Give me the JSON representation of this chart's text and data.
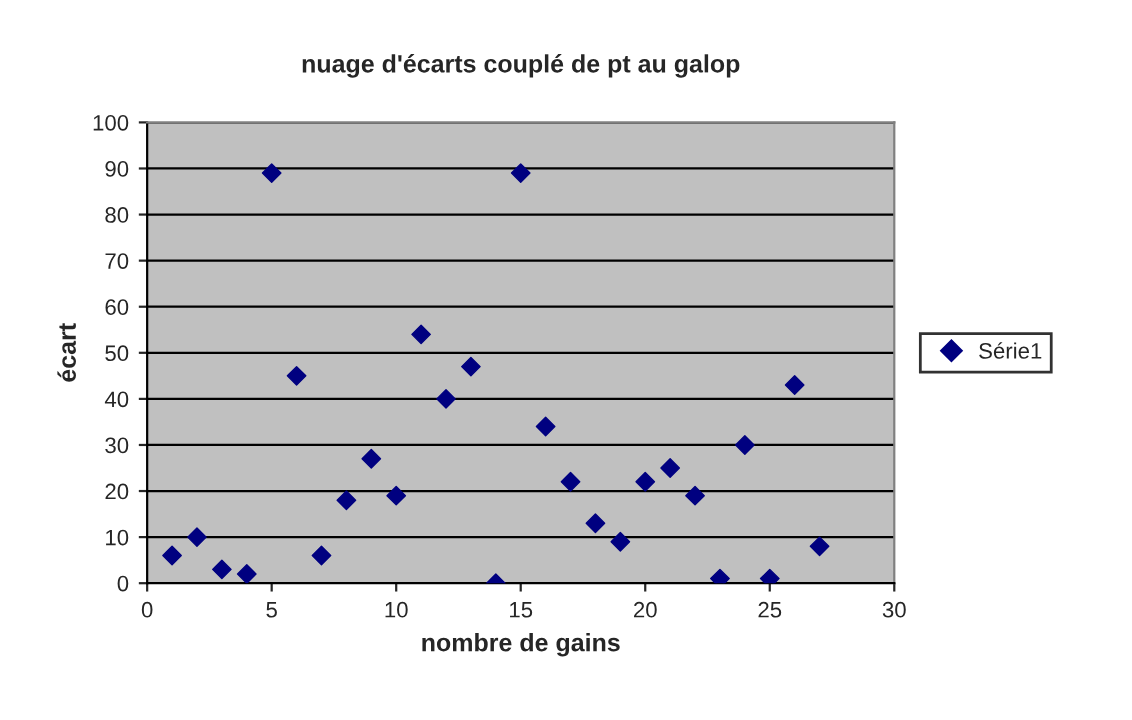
{
  "chart_data": {
    "type": "scatter",
    "title": "nuage d'écarts couplé de pt au galop",
    "xlabel": "nombre de gains",
    "ylabel": "écart",
    "x": [
      1,
      2,
      3,
      4,
      5,
      6,
      7,
      8,
      9,
      10,
      11,
      12,
      13,
      14,
      15,
      16,
      17,
      18,
      19,
      20,
      21,
      22,
      23,
      24,
      25,
      26,
      27
    ],
    "series": [
      {
        "name": "Série1",
        "color": "#000080",
        "values": [
          6,
          10,
          3,
          2,
          89,
          45,
          6,
          18,
          27,
          19,
          54,
          40,
          47,
          0,
          89,
          34,
          22,
          13,
          9,
          22,
          25,
          19,
          1,
          30,
          1,
          43,
          8
        ]
      }
    ],
    "xlim": [
      0,
      30
    ],
    "xticks": [
      0,
      5,
      10,
      15,
      20,
      25,
      30
    ],
    "ylim": [
      0,
      100
    ],
    "yticks": [
      0,
      10,
      20,
      30,
      40,
      50,
      60,
      70,
      80,
      90,
      100
    ],
    "grid": "y",
    "legend": "right",
    "marker": "diamond"
  }
}
